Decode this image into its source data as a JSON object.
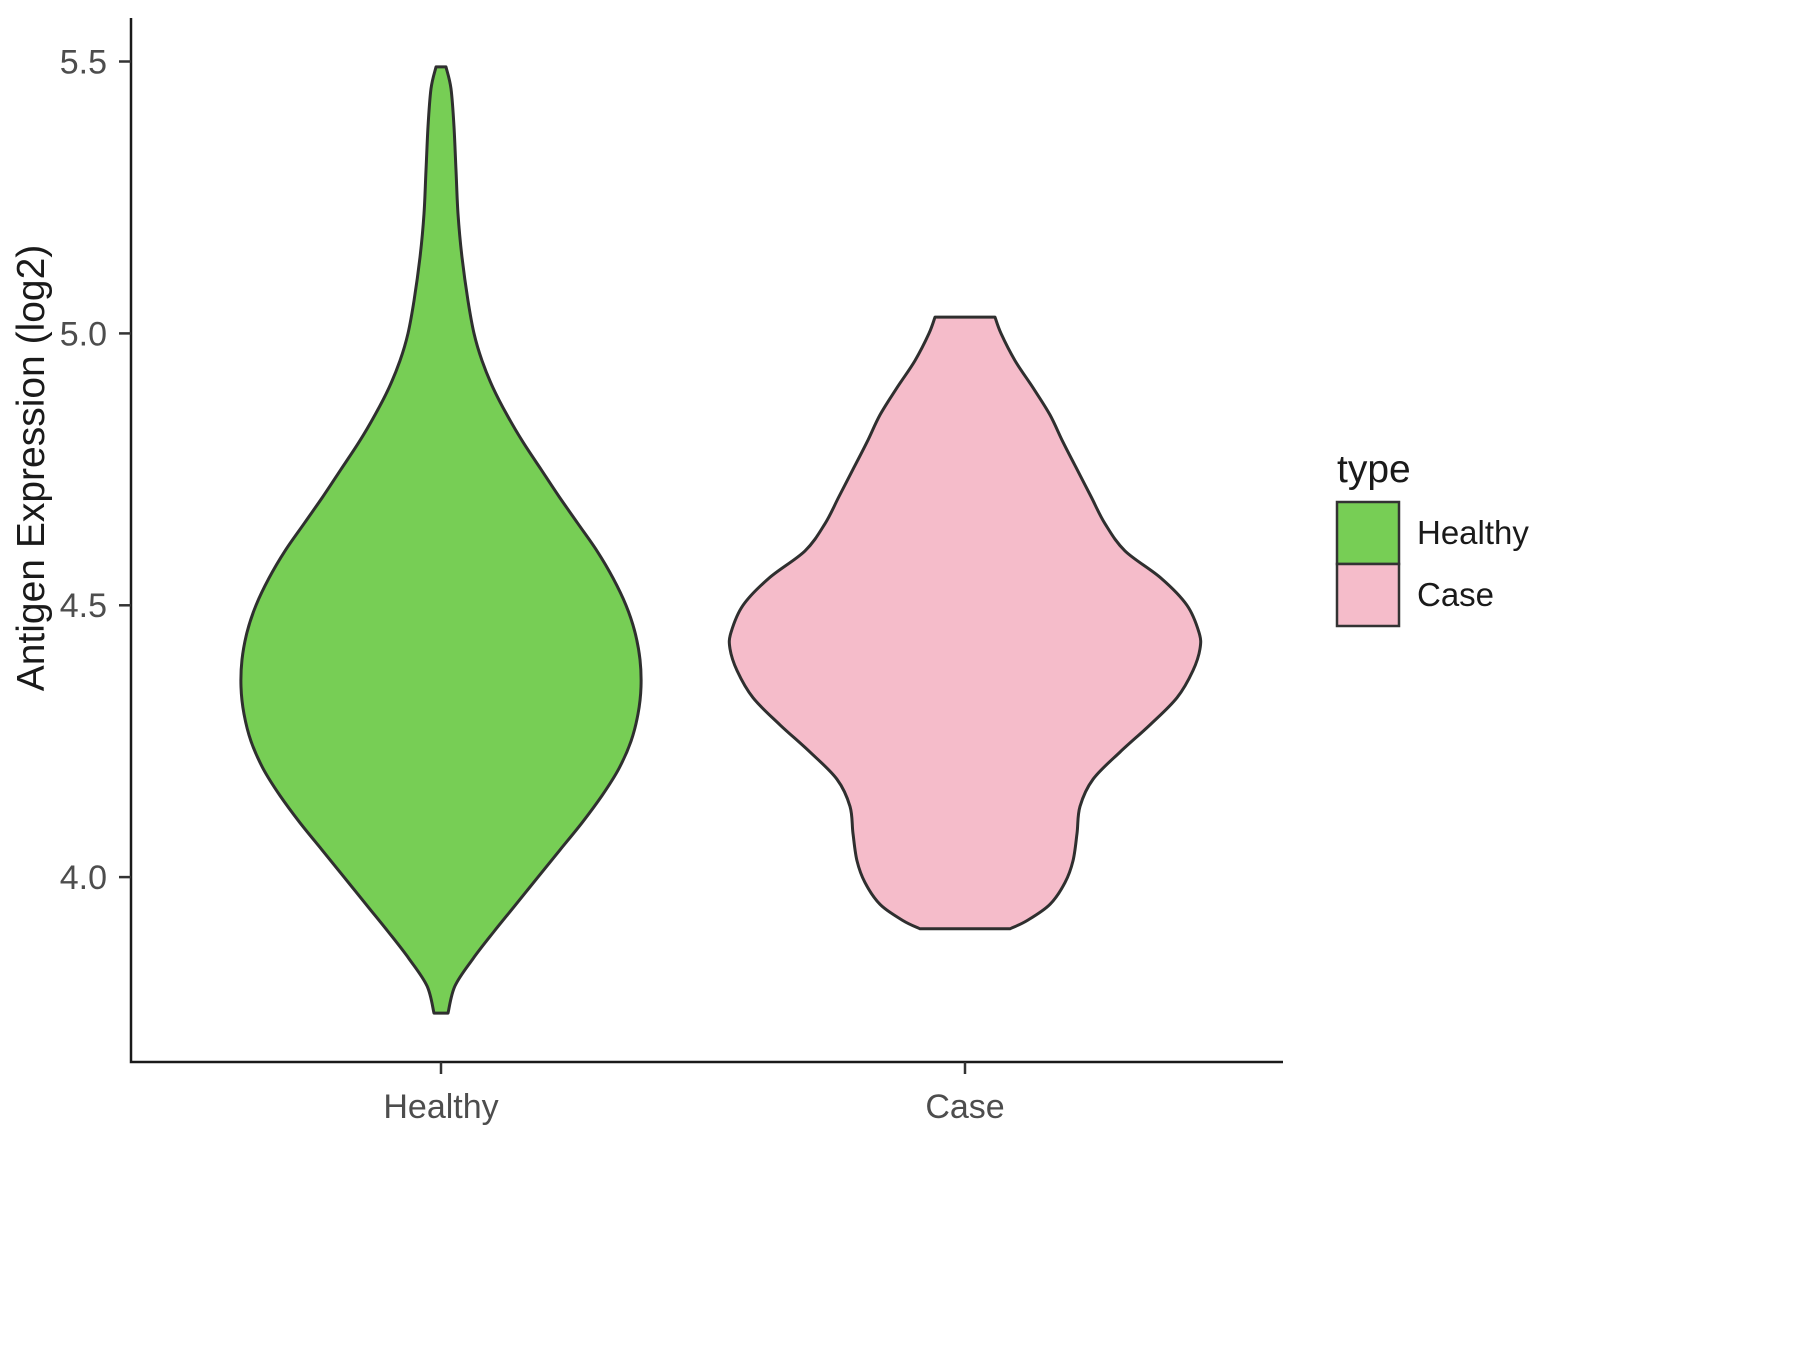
{
  "chart_data": {
    "type": "violin",
    "title": "",
    "xlabel": "",
    "ylabel": "Antigen Expression (log2)",
    "legend_title": "type",
    "legend_position": "right",
    "grid": false,
    "categories": [
      "Healthy",
      "Case"
    ],
    "yticks": [
      4.0,
      4.5,
      5.0,
      5.5
    ],
    "ytick_labels": [
      "4.0",
      "4.5",
      "5.0",
      "5.5"
    ],
    "ylim": [
      3.66,
      5.58
    ],
    "halfwidth_units": "px",
    "series": [
      {
        "name": "Healthy",
        "color": "#77CE55",
        "outline": "#2f2f2f",
        "y_min": 3.75,
        "y_max": 5.49,
        "profile": [
          [
            5.49,
            5
          ],
          [
            5.45,
            10
          ],
          [
            5.38,
            13
          ],
          [
            5.3,
            15
          ],
          [
            5.22,
            17
          ],
          [
            5.14,
            21
          ],
          [
            5.06,
            27
          ],
          [
            5.0,
            33
          ],
          [
            4.95,
            41
          ],
          [
            4.9,
            52
          ],
          [
            4.85,
            66
          ],
          [
            4.8,
            82
          ],
          [
            4.75,
            100
          ],
          [
            4.7,
            118
          ],
          [
            4.65,
            137
          ],
          [
            4.6,
            156
          ],
          [
            4.55,
            172
          ],
          [
            4.5,
            185
          ],
          [
            4.45,
            194
          ],
          [
            4.4,
            199
          ],
          [
            4.35,
            200
          ],
          [
            4.3,
            197
          ],
          [
            4.25,
            190
          ],
          [
            4.2,
            178
          ],
          [
            4.15,
            161
          ],
          [
            4.1,
            141
          ],
          [
            4.05,
            119
          ],
          [
            4.0,
            97
          ],
          [
            3.95,
            75
          ],
          [
            3.9,
            53
          ],
          [
            3.85,
            32
          ],
          [
            3.8,
            14
          ],
          [
            3.75,
            7
          ]
        ]
      },
      {
        "name": "Case",
        "color": "#F5BCCA",
        "outline": "#2f2f2f",
        "y_min": 3.905,
        "y_max": 5.03,
        "profile": [
          [
            5.03,
            30
          ],
          [
            5.0,
            36
          ],
          [
            4.95,
            50
          ],
          [
            4.9,
            68
          ],
          [
            4.85,
            85
          ],
          [
            4.8,
            98
          ],
          [
            4.75,
            112
          ],
          [
            4.7,
            126
          ],
          [
            4.65,
            140
          ],
          [
            4.6,
            160
          ],
          [
            4.55,
            196
          ],
          [
            4.5,
            222
          ],
          [
            4.45,
            234
          ],
          [
            4.42,
            235
          ],
          [
            4.38,
            228
          ],
          [
            4.33,
            212
          ],
          [
            4.28,
            185
          ],
          [
            4.23,
            155
          ],
          [
            4.18,
            128
          ],
          [
            4.13,
            115
          ],
          [
            4.08,
            112
          ],
          [
            4.03,
            108
          ],
          [
            3.99,
            100
          ],
          [
            3.95,
            85
          ],
          [
            3.92,
            62
          ],
          [
            3.905,
            45
          ]
        ]
      }
    ]
  }
}
